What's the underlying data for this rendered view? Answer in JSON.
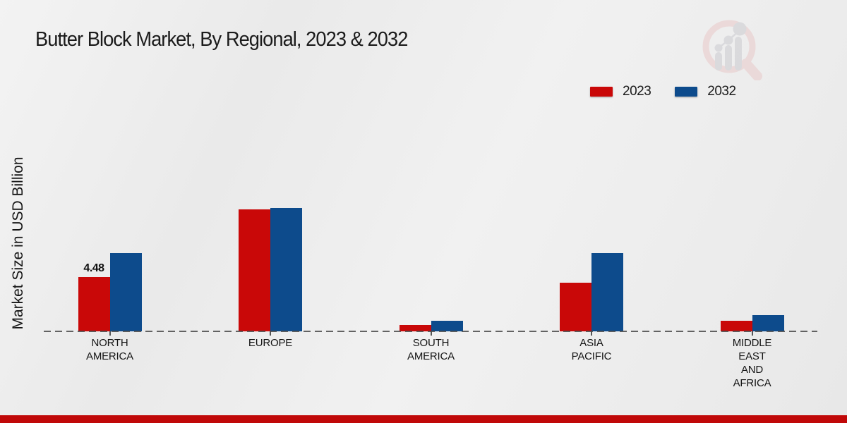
{
  "title": "Butter Block Market, By Regional, 2023 & 2032",
  "y_axis_label": "Market Size in USD Billion",
  "legend": {
    "items": [
      {
        "label": "2023",
        "color": "#c90808"
      },
      {
        "label": "2032",
        "color": "#0d4b8c"
      }
    ]
  },
  "watermark_icon": "market-research-future-logo",
  "footer": {
    "bar_color": "#c00808"
  },
  "colors": {
    "series_2023": "#c90808",
    "series_2032": "#0d4b8c",
    "baseline": "#4a4a4a",
    "background": "#ededed"
  },
  "chart_data": {
    "type": "bar",
    "categories": [
      "NORTH AMERICA",
      "EUROPE",
      "SOUTH AMERICA",
      "ASIA PACIFIC",
      "MIDDLE EAST AND AFRICA"
    ],
    "series": [
      {
        "name": "2023",
        "color": "#c90808",
        "values": [
          4.48,
          10.05,
          0.5,
          4.0,
          0.85
        ]
      },
      {
        "name": "2032",
        "color": "#0d4b8c",
        "values": [
          6.45,
          10.15,
          0.85,
          6.45,
          1.35
        ]
      }
    ],
    "title": "Butter Block Market, By Regional, 2023 & 2032",
    "xlabel": "",
    "ylabel": "Market Size in USD Billion",
    "ylim": [
      0,
      12
    ],
    "grid": false,
    "legend_position": "top-right",
    "annotations": [
      {
        "series": "2023",
        "category_index": 0,
        "text": "4.48"
      }
    ]
  }
}
